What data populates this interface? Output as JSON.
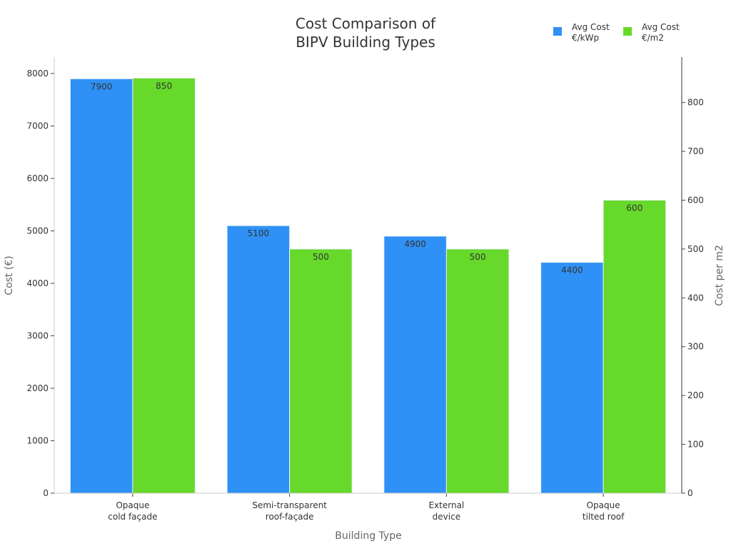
{
  "chart_data": {
    "type": "bar",
    "title": "Cost Comparison of\nBIPV Building Types",
    "xlabel": "Building Type",
    "ylabel": "Cost (€)",
    "ylabel_right": "Cost per m2",
    "categories": [
      "Opaque\ncold façade",
      "Semi-transparent\nroof-façade",
      "External\ndevice",
      "Opaque\ntilted roof"
    ],
    "series": [
      {
        "name": "Avg Cost\n€/kWp",
        "axis": "left",
        "color": "#2f91f5",
        "values": [
          7900,
          5100,
          4900,
          4400
        ]
      },
      {
        "name": "Avg Cost\n€/m2",
        "axis": "right",
        "color": "#66d92a",
        "values": [
          850,
          500,
          500,
          600
        ]
      }
    ],
    "ylim": [
      0,
      8313
    ],
    "ylim_right": [
      0,
      893
    ],
    "yticks": [
      0,
      1000,
      2000,
      3000,
      4000,
      5000,
      6000,
      7000,
      8000
    ],
    "yticks_right": [
      0,
      100,
      200,
      300,
      400,
      500,
      600,
      700,
      800
    ],
    "grid": false,
    "legend_position": "top-right"
  }
}
